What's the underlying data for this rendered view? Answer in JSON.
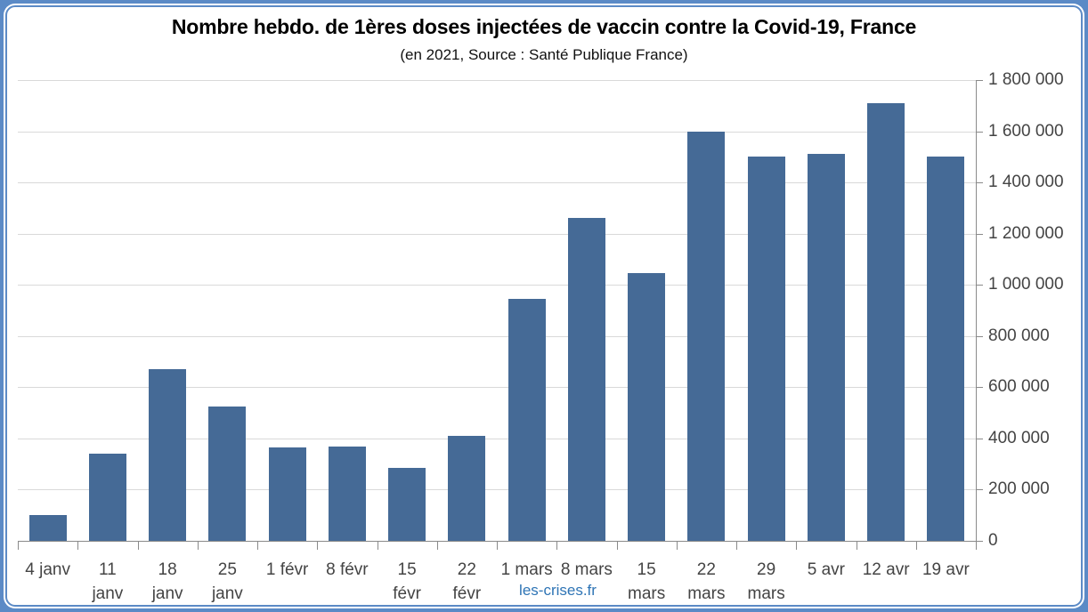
{
  "title": "Nombre hebdo. de 1ères doses injectées de vaccin contre la Covid-19, France",
  "subtitle": "(en 2021, Source : Santé Publique France)",
  "watermark": "les-crises.fr",
  "colors": {
    "bar": "#456A96",
    "frame_border": "#5B8AC6",
    "gridline": "#D9D9D9",
    "axis_line": "#8A8A8A",
    "tick_text": "#444444",
    "title_text": "#000000",
    "watermark_text": "#2E74B5"
  },
  "chart_data": {
    "type": "bar",
    "title": "Nombre hebdo. de 1ères doses injectées de vaccin contre la Covid-19, France",
    "subtitle": "(en 2021, Source : Santé Publique France)",
    "xlabel": "",
    "ylabel": "",
    "categories": [
      "4 janv",
      "11 janv",
      "18 janv",
      "25 janv",
      "1 févr",
      "8 févr",
      "15 févr",
      "22 févr",
      "1 mars",
      "8 mars",
      "15 mars",
      "22 mars",
      "29 mars",
      "5 avr",
      "12 avr",
      "19 avr"
    ],
    "category_lines": [
      [
        "4 janv"
      ],
      [
        "11",
        "janv"
      ],
      [
        "18",
        "janv"
      ],
      [
        "25",
        "janv"
      ],
      [
        "1 févr"
      ],
      [
        "8 févr"
      ],
      [
        "15",
        "févr"
      ],
      [
        "22",
        "févr"
      ],
      [
        "1 mars"
      ],
      [
        "8 mars"
      ],
      [
        "15",
        "mars"
      ],
      [
        "22",
        "mars"
      ],
      [
        "29",
        "mars"
      ],
      [
        "5 avr"
      ],
      [
        "12 avr"
      ],
      [
        "19 avr"
      ]
    ],
    "values": [
      100000,
      340000,
      670000,
      525000,
      365000,
      370000,
      285000,
      410000,
      945000,
      1260000,
      1045000,
      1600000,
      1500000,
      1510000,
      1710000,
      1500000
    ],
    "ylim": [
      0,
      1800000
    ],
    "ytick_step": 200000,
    "ytick_labels": [
      "0",
      "200 000",
      "400 000",
      "600 000",
      "800 000",
      "1 000 000",
      "1 200 000",
      "1 400 000",
      "1 600 000",
      "1 800 000"
    ],
    "yaxis_side": "right",
    "grid": true,
    "legend": false,
    "bar_color": "#456A96"
  }
}
